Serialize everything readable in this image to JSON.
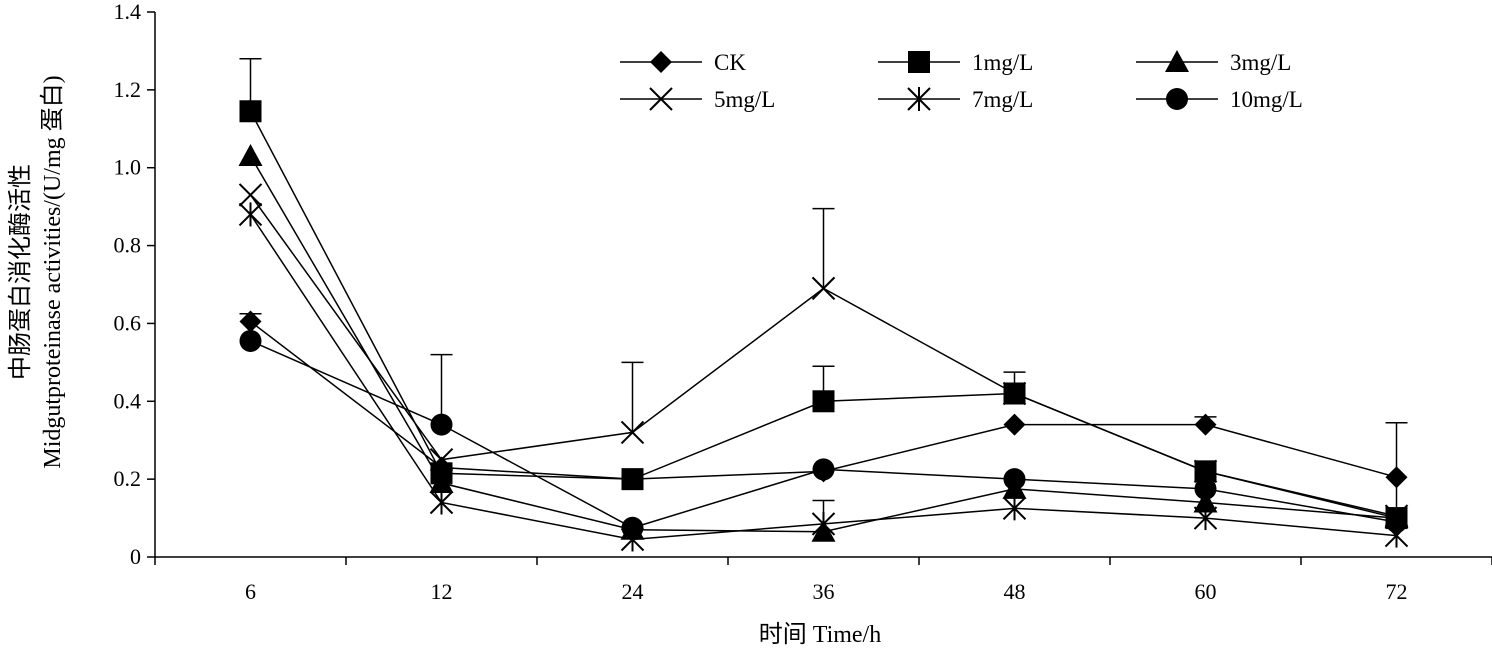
{
  "chart_data": {
    "type": "line",
    "categories": [
      "6",
      "12",
      "24",
      "36",
      "48",
      "60",
      "72"
    ],
    "xlabel": "时间 Time/h",
    "ylabel_lines": [
      "中肠蛋白消化酶活性",
      "Midgutproteinase activities/(U/mg 蛋白)"
    ],
    "ylim": [
      0,
      1.4
    ],
    "y_ticks": [
      "0",
      "0.2",
      "0.4",
      "0.6",
      "0.8",
      "1.0",
      "1.2",
      "1.4"
    ],
    "grid": false,
    "legend_position": "top-right",
    "series": [
      {
        "name": "CK",
        "marker": "diamond",
        "values": [
          0.605,
          0.23,
          0.2,
          0.22,
          0.34,
          0.34,
          0.205
        ],
        "errors": [
          0.02,
          0.0,
          0.0,
          0.0,
          0.0,
          0.02,
          0.0
        ]
      },
      {
        "name": "1mg/L",
        "marker": "square",
        "values": [
          1.145,
          0.215,
          0.2,
          0.4,
          0.42,
          0.22,
          0.1
        ],
        "errors": [
          0.135,
          0.0,
          0.0,
          0.09,
          0.055,
          0.0,
          0.0
        ]
      },
      {
        "name": "3mg/L",
        "marker": "triangle",
        "values": [
          1.03,
          0.19,
          0.07,
          0.065,
          0.175,
          0.14,
          0.1
        ],
        "errors": [
          0.0,
          0.0,
          0.0,
          0.0,
          0.0,
          0.0,
          0.0
        ]
      },
      {
        "name": "5mg/L",
        "marker": "x",
        "values": [
          0.93,
          0.25,
          0.32,
          0.69,
          0.42,
          0.22,
          0.105
        ],
        "errors": [
          0.0,
          0.0,
          0.18,
          0.205,
          0.0,
          0.0,
          0.24
        ]
      },
      {
        "name": "7mg/L",
        "marker": "asterisk",
        "values": [
          0.88,
          0.14,
          0.045,
          0.085,
          0.125,
          0.1,
          0.055
        ],
        "errors": [
          0.0,
          0.0,
          0.0,
          0.06,
          0.0,
          0.0,
          0.0
        ]
      },
      {
        "name": "10mg/L",
        "marker": "circle",
        "values": [
          0.555,
          0.34,
          0.075,
          0.225,
          0.2,
          0.175,
          0.09
        ],
        "errors": [
          0.0,
          0.18,
          0.0,
          0.0,
          0.0,
          0.0,
          0.0
        ]
      }
    ]
  }
}
